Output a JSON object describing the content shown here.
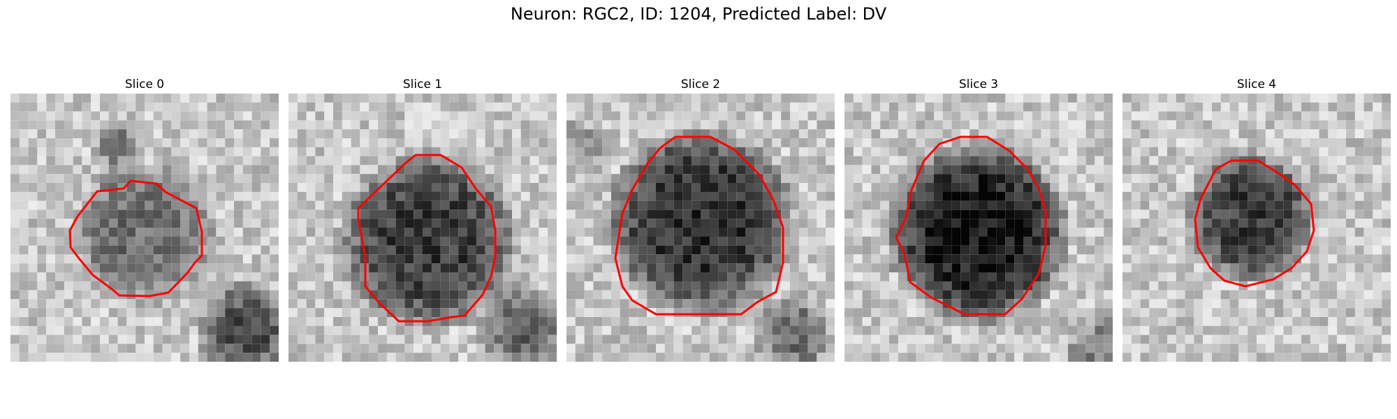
{
  "title": "Neuron: RGC2, ID: 1204, Predicted Label: DV",
  "contour_color": "#ff0000",
  "slices": [
    {
      "label": "Slice 0"
    },
    {
      "label": "Slice 1"
    },
    {
      "label": "Slice 2"
    },
    {
      "label": "Slice 3"
    },
    {
      "label": "Slice 4"
    }
  ]
}
